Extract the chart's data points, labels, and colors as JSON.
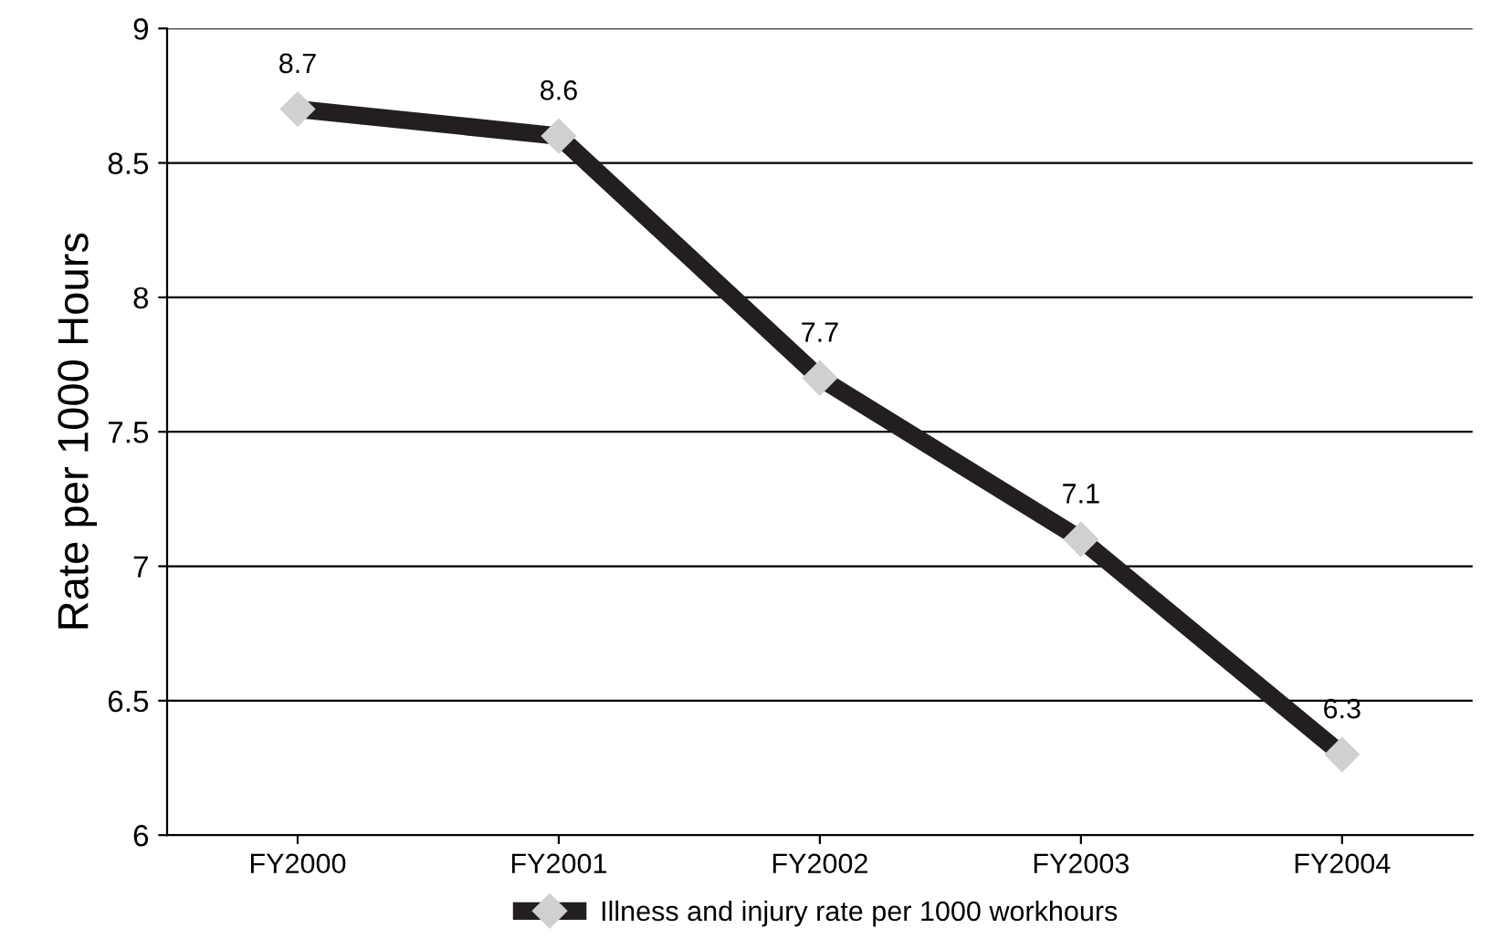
{
  "chart_data": {
    "type": "line",
    "ylabel": "Rate per 1000 Hours",
    "categories": [
      "FY2000",
      "FY2001",
      "FY2002",
      "FY2003",
      "FY2004"
    ],
    "series": [
      {
        "name": "Illness and injury rate per 1000 workhours",
        "color": "#231f20",
        "values": [
          8.7,
          8.6,
          7.7,
          7.1,
          6.3
        ]
      }
    ],
    "ylim": [
      6,
      9
    ],
    "yticks": [
      6,
      6.5,
      7,
      7.5,
      8,
      8.5,
      9
    ],
    "grid": "y",
    "legend": "bottom",
    "marker": "diamond",
    "data_labels": true
  }
}
